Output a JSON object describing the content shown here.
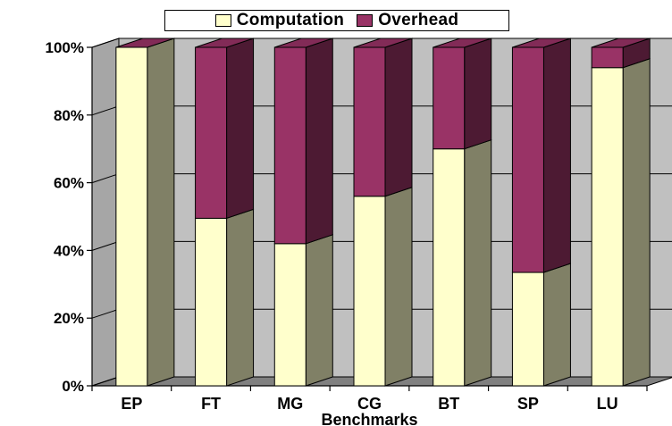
{
  "chart_data": {
    "type": "bar",
    "stacked": true,
    "normalized": true,
    "three_d": true,
    "title": "",
    "xlabel": "Benchmarks",
    "ylabel": "",
    "ylim": [
      0,
      100
    ],
    "yticks": [
      "0%",
      "20%",
      "40%",
      "60%",
      "80%",
      "100%"
    ],
    "categories": [
      "EP",
      "FT",
      "MG",
      "CG",
      "BT",
      "SP",
      "LU"
    ],
    "series": [
      {
        "name": "Computation",
        "values": [
          100,
          49.5,
          42,
          56,
          70,
          33.5,
          94
        ]
      },
      {
        "name": "Overhead",
        "values": [
          0,
          50.5,
          58,
          44,
          30,
          66.5,
          6
        ]
      }
    ],
    "colors": {
      "Computation": "#ffffcc",
      "Overhead": "#993366",
      "wall": "#c0c0c0",
      "floor": "#808080"
    },
    "legend_position": "top",
    "grid": true
  }
}
